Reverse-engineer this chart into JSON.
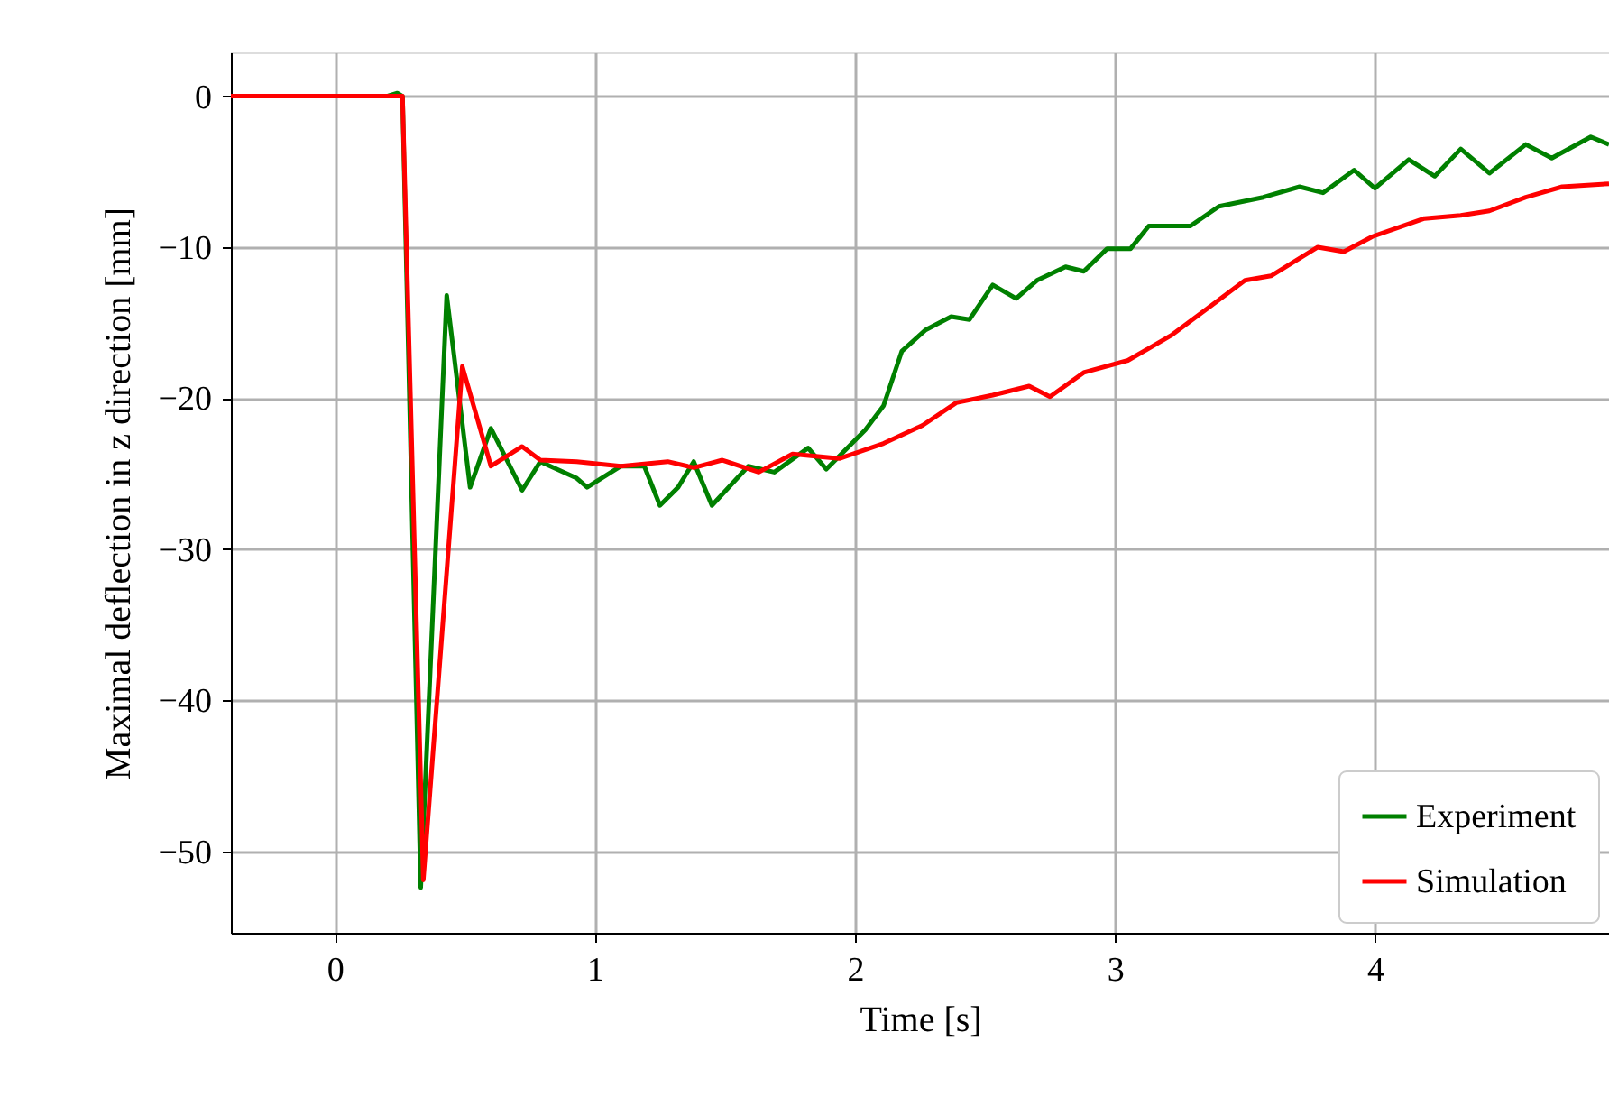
{
  "chart_data": {
    "type": "line",
    "xlabel": "Time [s]",
    "ylabel": "Maximal deflection in z direction [mm]",
    "xlim": [
      -0.4,
      4.9
    ],
    "ylim": [
      -55.4,
      2.9
    ],
    "xticks": [
      0,
      1,
      2,
      3,
      4
    ],
    "yticks": [
      0,
      -10,
      -20,
      -30,
      -40,
      -50
    ],
    "grid": true,
    "legend": "bottom right",
    "line_style": "solid",
    "marker": "none",
    "series": [
      {
        "name": "Experiment",
        "color": "#008000",
        "x": [
          -0.4,
          0.2,
          0.24,
          0.26,
          0.33,
          0.43,
          0.52,
          0.6,
          0.72,
          0.79,
          0.93,
          0.97,
          1.1,
          1.19,
          1.25,
          1.32,
          1.38,
          1.45,
          1.59,
          1.69,
          1.82,
          1.89,
          2.04,
          2.11,
          2.18,
          2.27,
          2.37,
          2.44,
          2.53,
          2.62,
          2.7,
          2.81,
          2.88,
          2.97,
          3.06,
          3.13,
          3.29,
          3.4,
          3.57,
          3.71,
          3.8,
          3.92,
          4.0,
          4.13,
          4.23,
          4.33,
          4.44,
          4.58,
          4.68,
          4.83,
          4.9
        ],
        "values": [
          0,
          0,
          0.2,
          0,
          -52.4,
          -13.2,
          -25.9,
          -22,
          -26.1,
          -24.2,
          -25.3,
          -25.9,
          -24.5,
          -24.5,
          -27.1,
          -25.9,
          -24.2,
          -27.1,
          -24.5,
          -24.9,
          -23.3,
          -24.7,
          -22.1,
          -20.5,
          -16.9,
          -15.5,
          -14.6,
          -14.8,
          -12.5,
          -13.4,
          -12.2,
          -11.3,
          -11.6,
          -10.1,
          -10.1,
          -8.6,
          -8.6,
          -7.3,
          -6.7,
          -6.0,
          -6.4,
          -4.9,
          -6.1,
          -4.2,
          -5.3,
          -3.5,
          -5.1,
          -3.2,
          -4.1,
          -2.7,
          -3.2
        ]
      },
      {
        "name": "Simulation",
        "color": "#ff0000",
        "x": [
          -0.4,
          0.26,
          0.34,
          0.49,
          0.6,
          0.72,
          0.79,
          0.93,
          1.1,
          1.28,
          1.38,
          1.49,
          1.63,
          1.76,
          1.94,
          2.11,
          2.26,
          2.39,
          2.53,
          2.67,
          2.75,
          2.88,
          3.05,
          3.22,
          3.36,
          3.5,
          3.6,
          3.78,
          3.88,
          3.99,
          4.19,
          4.33,
          4.44,
          4.58,
          4.72,
          4.9
        ],
        "values": [
          0,
          0,
          -51.9,
          -17.9,
          -24.5,
          -23.2,
          -24.1,
          -24.2,
          -24.5,
          -24.2,
          -24.6,
          -24.1,
          -24.9,
          -23.7,
          -24.0,
          -23.0,
          -21.8,
          -20.3,
          -19.8,
          -19.2,
          -19.9,
          -18.3,
          -17.5,
          -15.8,
          -14.0,
          -12.2,
          -11.9,
          -10.0,
          -10.3,
          -9.3,
          -8.1,
          -7.9,
          -7.6,
          -6.7,
          -6.0,
          -5.8
        ]
      }
    ]
  }
}
